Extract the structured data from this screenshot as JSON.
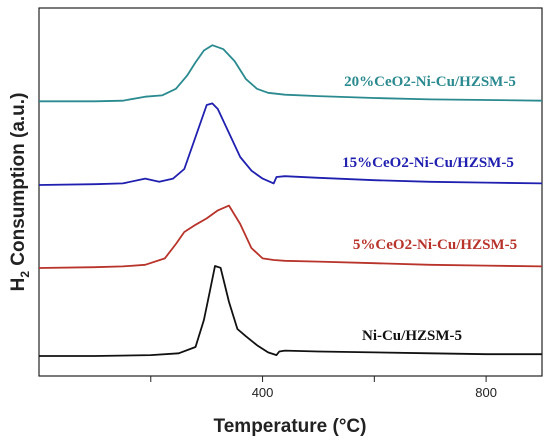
{
  "chart_data": {
    "type": "line",
    "title": "",
    "xlabel": "Temperature (°C)",
    "ylabel_main": "H",
    "ylabel_sub": "2",
    "ylabel_rest": " Consumption (a.u.)",
    "xlim": [
      0,
      900
    ],
    "x_ticks": [
      400,
      800
    ],
    "y_ticks_shown": false,
    "legend": "inline-labels",
    "series": [
      {
        "name": "20%CeO2-Ni-Cu/HZSM-5",
        "color": "#2a8a8f",
        "x": [
          0,
          100,
          150,
          190,
          220,
          245,
          265,
          280,
          295,
          310,
          330,
          350,
          370,
          390,
          410,
          440,
          500,
          600,
          700,
          800,
          900
        ],
        "y": [
          0.01,
          0.01,
          0.02,
          0.08,
          0.1,
          0.2,
          0.4,
          0.6,
          0.78,
          0.86,
          0.8,
          0.62,
          0.35,
          0.2,
          0.14,
          0.11,
          0.09,
          0.06,
          0.04,
          0.03,
          0.02
        ]
      },
      {
        "name": "15%CeO2-Ni-Cu/HZSM-5",
        "color": "#2020b0",
        "x": [
          0,
          100,
          150,
          190,
          215,
          240,
          260,
          275,
          290,
          300,
          310,
          320,
          340,
          360,
          380,
          400,
          420,
          425,
          440,
          500,
          600,
          700,
          800,
          900
        ],
        "y": [
          0.0,
          0.01,
          0.02,
          0.08,
          0.04,
          0.08,
          0.2,
          0.5,
          0.8,
          1.0,
          1.02,
          0.95,
          0.65,
          0.35,
          0.18,
          0.08,
          0.02,
          0.1,
          0.11,
          0.09,
          0.06,
          0.04,
          0.03,
          0.02
        ]
      },
      {
        "name": "5%CeO2-Ni-Cu/HZSM-5",
        "color": "#b8332a",
        "x": [
          0,
          100,
          150,
          190,
          225,
          245,
          260,
          280,
          300,
          320,
          340,
          360,
          380,
          400,
          420,
          440,
          500,
          600,
          700,
          800,
          900
        ],
        "y": [
          0.0,
          0.01,
          0.02,
          0.04,
          0.12,
          0.3,
          0.45,
          0.54,
          0.62,
          0.72,
          0.78,
          0.55,
          0.25,
          0.12,
          0.1,
          0.09,
          0.08,
          0.06,
          0.04,
          0.03,
          0.02
        ]
      },
      {
        "name": "Ni-Cu/HZSM-5",
        "color": "#111111",
        "x": [
          0,
          100,
          200,
          250,
          280,
          295,
          305,
          315,
          325,
          340,
          355,
          370,
          390,
          410,
          425,
          430,
          440,
          500,
          600,
          700,
          800,
          900
        ],
        "y": [
          0.0,
          0.0,
          0.01,
          0.03,
          0.1,
          0.4,
          0.7,
          1.0,
          0.98,
          0.6,
          0.3,
          0.22,
          0.12,
          0.04,
          0.01,
          0.05,
          0.06,
          0.05,
          0.04,
          0.03,
          0.02,
          0.02
        ]
      }
    ]
  }
}
